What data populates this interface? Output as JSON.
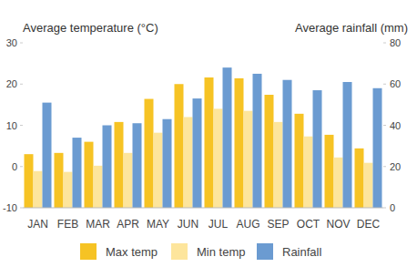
{
  "chart_data": {
    "type": "bar",
    "y_label": "Average temperature (°C)",
    "y2_label": "Average rainfall (mm)",
    "categories": [
      "JAN",
      "FEB",
      "MAR",
      "APR",
      "MAY",
      "JUN",
      "JUL",
      "AUG",
      "SEP",
      "OCT",
      "NOV",
      "DEC"
    ],
    "series": [
      {
        "name": "Max temp",
        "color": "#f6c324",
        "values": [
          3,
          3.3,
          6,
          10.8,
          16.4,
          20,
          21.6,
          21.4,
          17.4,
          12.8,
          7.7,
          4.4
        ]
      },
      {
        "name": "Min temp",
        "color": "#fde59c",
        "values": [
          -1.1,
          -1.3,
          0.2,
          3.3,
          8.2,
          12,
          14,
          13.5,
          10.8,
          7.3,
          2.2,
          0.9
        ]
      },
      {
        "name": "Rainfall",
        "color": "#6b9bd1",
        "axis": "y2",
        "values": [
          51,
          34,
          40,
          41,
          43,
          53,
          68,
          65,
          62,
          57,
          61,
          58
        ]
      }
    ],
    "ylim": [
      -10,
      30
    ],
    "yticks": [
      -10,
      0,
      10,
      20,
      30
    ],
    "y2lim": [
      0,
      80
    ],
    "y2ticks": [
      0,
      20,
      40,
      60,
      80
    ],
    "grid": false,
    "legend": "bottom"
  }
}
